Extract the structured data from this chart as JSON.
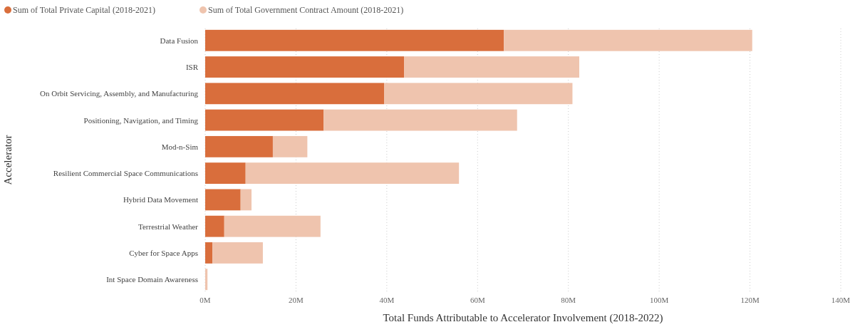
{
  "chart_data": {
    "type": "bar",
    "orientation": "horizontal",
    "stacked": true,
    "xlabel": "Total Funds Attributable to Accelerator Involvement (2018-2022)",
    "ylabel": "Accelerator",
    "categories": [
      "Data Fusion",
      "ISR",
      "On Orbit Servicing, Assembly, and Manufacturing",
      "Positioning, Navigation, and Timing",
      "Mod-n-Sim",
      "Resilient Commercial Space Communications",
      "Hybrid Data Movement",
      "Terrestrial Weather",
      "Cyber for Space Apps",
      "Int Space Domain Awareness"
    ],
    "series": [
      {
        "name": "Sum of Total Private Capital (2018-2021)",
        "color": "#d96e3c",
        "values": [
          65.8,
          43.8,
          39.4,
          26.1,
          14.9,
          8.9,
          7.8,
          4.2,
          1.6,
          0
        ]
      },
      {
        "name": "Sum of Total Government Contract Amount (2018-2021)",
        "color": "#efc4ae",
        "values": [
          54.7,
          38.6,
          41.5,
          42.6,
          7.6,
          47.0,
          2.4,
          21.2,
          11.1,
          0.5
        ]
      }
    ],
    "xlim": [
      0,
      140
    ],
    "xticks": [
      {
        "value": 0,
        "label": "0M"
      },
      {
        "value": 20,
        "label": "20M"
      },
      {
        "value": 40,
        "label": "40M"
      },
      {
        "value": 60,
        "label": "60M"
      },
      {
        "value": 80,
        "label": "80M"
      },
      {
        "value": 100,
        "label": "100M"
      },
      {
        "value": 120,
        "label": "120M"
      },
      {
        "value": 140,
        "label": "140M"
      }
    ],
    "grid": "x",
    "legend": "top left"
  }
}
